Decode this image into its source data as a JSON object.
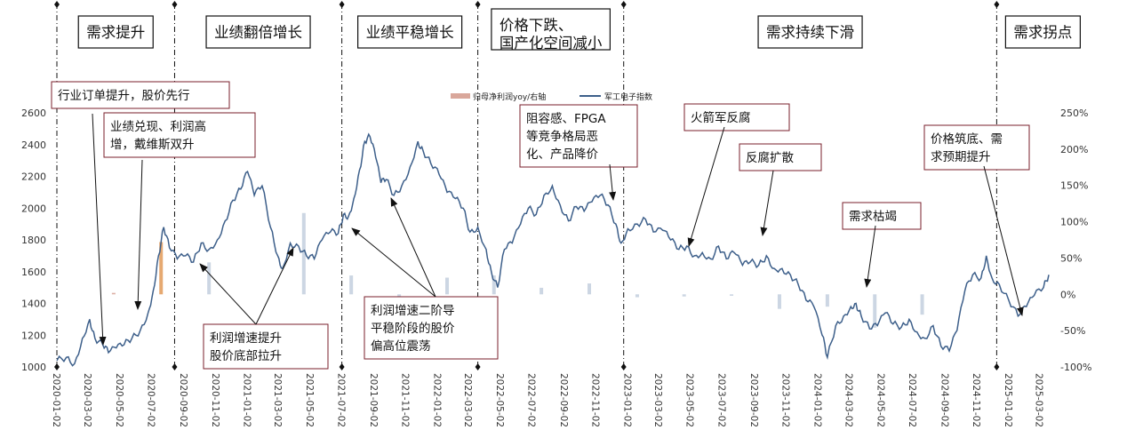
{
  "chart_data": {
    "type": "line",
    "title": "",
    "xlabel": "",
    "ylabel": "",
    "ylim": [
      1000,
      2600
    ],
    "y2lim": [
      -100,
      250
    ],
    "yticks": [
      1000,
      1200,
      1400,
      1600,
      1800,
      2000,
      2200,
      2400,
      2600
    ],
    "y2ticks": [
      "-100%",
      "-50%",
      "0%",
      "50%",
      "100%",
      "150%",
      "200%",
      "250%"
    ],
    "y2tick_values": [
      -100,
      -50,
      0,
      50,
      100,
      150,
      200,
      250
    ],
    "xticks": [
      "2020-01-02",
      "2020-03-02",
      "2020-05-02",
      "2020-07-02",
      "2020-09-02",
      "2020-11-02",
      "2021-01-02",
      "2021-03-02",
      "2021-05-02",
      "2021-07-02",
      "2021-09-02",
      "2021-11-02",
      "2022-01-02",
      "2022-03-02",
      "2022-05-02",
      "2022-07-02",
      "2022-09-02",
      "2022-11-02",
      "2023-01-02",
      "2023-03-02",
      "2023-05-02",
      "2023-07-02",
      "2023-09-02",
      "2023-11-02",
      "2024-01-02",
      "2024-03-02",
      "2024-05-02",
      "2024-07-02",
      "2024-09-02",
      "2024-11-02",
      "2025-01-02",
      "2025-03-02"
    ],
    "legend_position": "top-center",
    "series": [
      {
        "name": "军工电子指数",
        "axis": "left",
        "color": "#3d5f8a",
        "points": [
          [
            "2020-01-02",
            1040
          ],
          [
            "2020-01-20",
            1060
          ],
          [
            "2020-02-05",
            1020
          ],
          [
            "2020-02-20",
            1180
          ],
          [
            "2020-03-05",
            1300
          ],
          [
            "2020-03-15",
            1180
          ],
          [
            "2020-03-30",
            1140
          ],
          [
            "2020-04-10",
            1090
          ],
          [
            "2020-04-25",
            1120
          ],
          [
            "2020-05-10",
            1140
          ],
          [
            "2020-05-25",
            1180
          ],
          [
            "2020-06-10",
            1230
          ],
          [
            "2020-06-25",
            1340
          ],
          [
            "2020-07-05",
            1480
          ],
          [
            "2020-07-15",
            1700
          ],
          [
            "2020-07-25",
            1880
          ],
          [
            "2020-08-05",
            1750
          ],
          [
            "2020-08-20",
            1680
          ],
          [
            "2020-09-05",
            1700
          ],
          [
            "2020-09-20",
            1660
          ],
          [
            "2020-10-05",
            1780
          ],
          [
            "2020-10-20",
            1740
          ],
          [
            "2020-11-05",
            1800
          ],
          [
            "2020-11-20",
            1920
          ],
          [
            "2020-12-05",
            2050
          ],
          [
            "2020-12-20",
            2120
          ],
          [
            "2021-01-02",
            2230
          ],
          [
            "2021-01-15",
            2080
          ],
          [
            "2021-01-30",
            2140
          ],
          [
            "2021-02-15",
            1880
          ],
          [
            "2021-03-01",
            1700
          ],
          [
            "2021-03-10",
            1620
          ],
          [
            "2021-03-25",
            1780
          ],
          [
            "2021-04-10",
            1760
          ],
          [
            "2021-04-25",
            1700
          ],
          [
            "2021-05-10",
            1680
          ],
          [
            "2021-05-25",
            1800
          ],
          [
            "2021-06-10",
            1850
          ],
          [
            "2021-06-25",
            1840
          ],
          [
            "2021-07-05",
            1960
          ],
          [
            "2021-07-15",
            1950
          ],
          [
            "2021-07-25",
            2060
          ],
          [
            "2021-08-05",
            2240
          ],
          [
            "2021-08-15",
            2420
          ],
          [
            "2021-08-25",
            2450
          ],
          [
            "2021-09-05",
            2320
          ],
          [
            "2021-09-15",
            2160
          ],
          [
            "2021-09-25",
            2180
          ],
          [
            "2021-10-10",
            2080
          ],
          [
            "2021-10-25",
            2140
          ],
          [
            "2021-11-10",
            2260
          ],
          [
            "2021-11-25",
            2420
          ],
          [
            "2021-12-05",
            2360
          ],
          [
            "2021-12-20",
            2280
          ],
          [
            "2022-01-05",
            2210
          ],
          [
            "2022-01-20",
            2100
          ],
          [
            "2022-02-05",
            2060
          ],
          [
            "2022-02-20",
            2000
          ],
          [
            "2022-03-05",
            1850
          ],
          [
            "2022-03-20",
            1880
          ],
          [
            "2022-04-05",
            1740
          ],
          [
            "2022-04-15",
            1600
          ],
          [
            "2022-04-27",
            1500
          ],
          [
            "2022-05-10",
            1740
          ],
          [
            "2022-05-25",
            1780
          ],
          [
            "2022-06-10",
            1900
          ],
          [
            "2022-06-25",
            2000
          ],
          [
            "2022-07-10",
            1960
          ],
          [
            "2022-07-25",
            2080
          ],
          [
            "2022-08-10",
            2140
          ],
          [
            "2022-08-25",
            2020
          ],
          [
            "2022-09-10",
            1920
          ],
          [
            "2022-09-25",
            2010
          ],
          [
            "2022-10-10",
            1980
          ],
          [
            "2022-10-25",
            2040
          ],
          [
            "2022-11-10",
            2080
          ],
          [
            "2022-11-25",
            2020
          ],
          [
            "2022-12-10",
            1900
          ],
          [
            "2022-12-20",
            1780
          ],
          [
            "2023-01-02",
            1870
          ],
          [
            "2023-01-20",
            1900
          ],
          [
            "2023-02-05",
            1930
          ],
          [
            "2023-02-20",
            1850
          ],
          [
            "2023-03-10",
            1860
          ],
          [
            "2023-03-25",
            1800
          ],
          [
            "2023-04-10",
            1740
          ],
          [
            "2023-04-25",
            1760
          ],
          [
            "2023-05-10",
            1700
          ],
          [
            "2023-05-25",
            1720
          ],
          [
            "2023-06-10",
            1680
          ],
          [
            "2023-06-25",
            1760
          ],
          [
            "2023-07-10",
            1680
          ],
          [
            "2023-07-25",
            1720
          ],
          [
            "2023-08-10",
            1640
          ],
          [
            "2023-08-25",
            1660
          ],
          [
            "2023-09-10",
            1640
          ],
          [
            "2023-09-25",
            1700
          ],
          [
            "2023-10-10",
            1620
          ],
          [
            "2023-10-25",
            1620
          ],
          [
            "2023-11-10",
            1580
          ],
          [
            "2023-11-25",
            1520
          ],
          [
            "2023-12-10",
            1420
          ],
          [
            "2023-12-25",
            1380
          ],
          [
            "2024-01-10",
            1200
          ],
          [
            "2024-01-20",
            1060
          ],
          [
            "2024-02-05",
            1260
          ],
          [
            "2024-02-20",
            1320
          ],
          [
            "2024-03-05",
            1380
          ],
          [
            "2024-03-15",
            1400
          ],
          [
            "2024-03-25",
            1320
          ],
          [
            "2024-04-10",
            1240
          ],
          [
            "2024-04-25",
            1260
          ],
          [
            "2024-05-10",
            1340
          ],
          [
            "2024-05-25",
            1270
          ],
          [
            "2024-06-10",
            1250
          ],
          [
            "2024-06-25",
            1300
          ],
          [
            "2024-07-10",
            1220
          ],
          [
            "2024-07-25",
            1180
          ],
          [
            "2024-08-10",
            1260
          ],
          [
            "2024-08-25",
            1130
          ],
          [
            "2024-09-10",
            1100
          ],
          [
            "2024-09-25",
            1230
          ],
          [
            "2024-10-10",
            1480
          ],
          [
            "2024-10-25",
            1580
          ],
          [
            "2024-11-10",
            1560
          ],
          [
            "2024-11-20",
            1700
          ],
          [
            "2024-12-01",
            1560
          ],
          [
            "2024-12-15",
            1520
          ],
          [
            "2025-01-02",
            1420
          ],
          [
            "2025-01-20",
            1320
          ],
          [
            "2025-02-05",
            1380
          ],
          [
            "2025-02-20",
            1450
          ],
          [
            "2025-03-10",
            1500
          ],
          [
            "2025-03-20",
            1580
          ]
        ]
      },
      {
        "name": "归母净利润yoy/右轴",
        "axis": "right",
        "type": "bar",
        "points": [
          [
            "2020-04-20",
            2,
            "#d9a79b"
          ],
          [
            "2020-07-20",
            72,
            "#e3a062"
          ],
          [
            "2020-10-20",
            44,
            "#c7d2e0"
          ],
          [
            "2021-04-20",
            112,
            "#c7d2e0"
          ],
          [
            "2021-07-20",
            26,
            "#c7d2e0"
          ],
          [
            "2021-10-20",
            -11,
            "#c7d2e0"
          ],
          [
            "2022-01-20",
            23,
            "#c7d2e0"
          ],
          [
            "2022-04-20",
            26,
            "#c7d2e0"
          ],
          [
            "2022-07-20",
            9,
            "#c7d2e0"
          ],
          [
            "2022-10-20",
            15,
            "#c7d2e0"
          ],
          [
            "2023-01-20",
            -4,
            "#c7d2e0"
          ],
          [
            "2023-04-20",
            -3,
            "#c7d2e0"
          ],
          [
            "2023-07-20",
            -2,
            "#c7d2e0"
          ],
          [
            "2023-10-20",
            -20,
            "#c7d2e0"
          ],
          [
            "2024-01-20",
            -17,
            "#c7d2e0"
          ],
          [
            "2024-04-20",
            -46,
            "#c7d2e0"
          ],
          [
            "2024-07-20",
            -28,
            "#c7d2e0"
          ]
        ]
      }
    ],
    "phases": [
      {
        "label": "需求提升",
        "start": "2020-01-02",
        "end": "2020-08-15"
      },
      {
        "label": "业绩翻倍增长",
        "start": "2020-08-15",
        "end": "2021-07-02"
      },
      {
        "label": "业绩平稳增长",
        "start": "2021-07-02",
        "end": "2022-03-20"
      },
      {
        "label": "价格下跌、",
        "label2": "国产化空间减小",
        "start": "2022-03-20",
        "end": "2022-12-25"
      },
      {
        "label": "需求持续下滑",
        "start": "2022-12-25",
        "end": "2024-12-10"
      },
      {
        "label": "需求拐点",
        "start": "2024-12-10",
        "end": "2025-03-30"
      }
    ],
    "annotations": [
      {
        "lines": [
          "行业订单提升，股价先行"
        ]
      },
      {
        "lines": [
          "业绩兑现、利润高",
          "增，戴维斯双升"
        ]
      },
      {
        "lines": [
          "利润增速提升",
          "股价底部拉升"
        ]
      },
      {
        "lines": [
          "利润增速二阶导",
          "平稳阶段的股价",
          "偏高位震荡"
        ]
      },
      {
        "lines": [
          "阻容感、FPGA",
          "等竞争格局恶",
          "化、产品降价"
        ]
      },
      {
        "lines": [
          "火箭军反腐"
        ]
      },
      {
        "lines": [
          "反腐扩散"
        ]
      },
      {
        "lines": [
          "需求枯竭"
        ]
      },
      {
        "lines": [
          "价格筑底、需",
          "求预期提升"
        ]
      }
    ]
  }
}
